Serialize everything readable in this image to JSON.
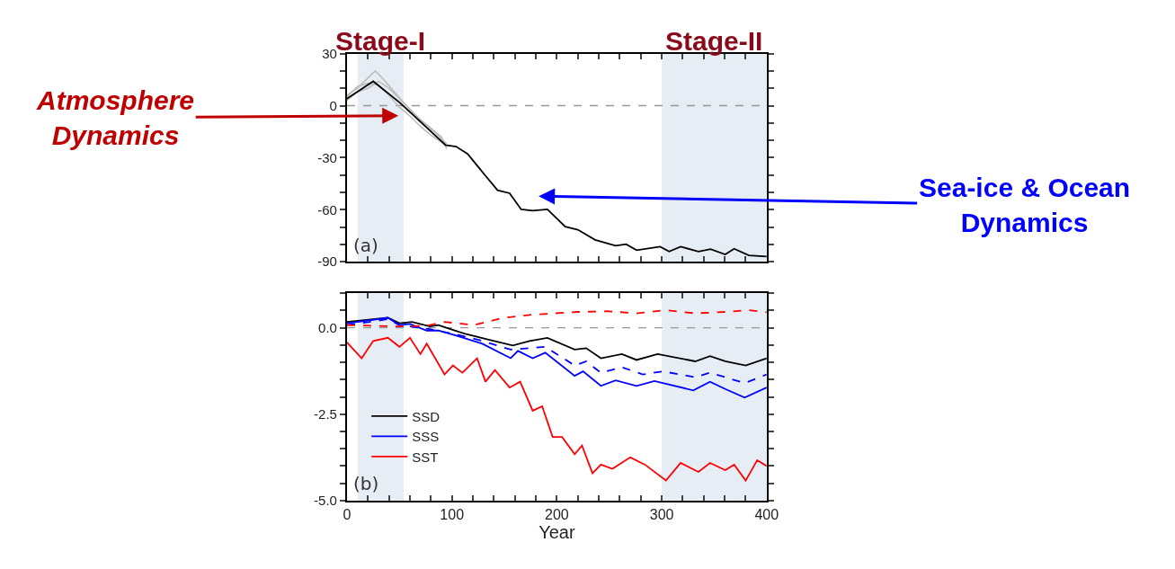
{
  "chart_data": [
    {
      "type": "line",
      "xlim": [
        0,
        400
      ],
      "ylim": [
        -90,
        30
      ],
      "xticks": [
        0,
        {
          "value": 20,
          "label": null
        },
        {
          "value": 40,
          "label": null
        },
        {
          "value": 60,
          "label": null
        },
        {
          "value": 80,
          "label": null
        },
        100,
        {
          "value": 120,
          "label": null
        },
        {
          "value": 140,
          "label": null
        },
        {
          "value": 160,
          "label": null
        },
        {
          "value": 180,
          "label": null
        },
        200,
        {
          "value": 220,
          "label": null
        },
        {
          "value": 240,
          "label": null
        },
        {
          "value": 260,
          "label": null
        },
        {
          "value": 280,
          "label": null
        },
        300,
        {
          "value": 320,
          "label": null
        },
        {
          "value": 340,
          "label": null
        },
        {
          "value": 360,
          "label": null
        },
        {
          "value": 380,
          "label": null
        },
        400
      ],
      "yticks": [
        -90,
        {
          "value": -80,
          "label": null
        },
        {
          "value": -70,
          "label": null
        },
        -60,
        {
          "value": -50,
          "label": null
        },
        {
          "value": -40,
          "label": null
        },
        -30,
        {
          "value": -20,
          "label": null
        },
        {
          "value": -10,
          "label": null
        },
        0,
        {
          "value": 10,
          "label": null
        },
        {
          "value": 20,
          "label": null
        },
        30
      ],
      "tick_labels": "y",
      "grid": false,
      "legend": false,
      "series": [
        {
          "color": "#bbbbbb",
          "x": [
            0,
            10,
            20,
            27,
            35,
            45,
            55,
            65,
            75,
            85,
            95
          ],
          "values": [
            6,
            10,
            16,
            20,
            15,
            8,
            1,
            -6,
            -11,
            -16,
            -22
          ]
        },
        {
          "color": "#bbbbbb",
          "x": [
            0,
            10,
            20,
            30,
            40,
            50,
            60,
            70,
            80,
            90,
            95
          ],
          "values": [
            5,
            11,
            13,
            12,
            6,
            -1,
            -6,
            -12,
            -17,
            -21,
            -24
          ]
        },
        {
          "color": "#bbbbbb",
          "x": [
            0,
            10,
            20,
            30,
            40,
            50,
            60,
            70,
            80,
            90,
            95
          ],
          "values": [
            3,
            8,
            10,
            14,
            10,
            4,
            -2,
            -8,
            -13,
            -18,
            -25
          ]
        },
        {
          "color": "#000000",
          "x": [
            0,
            25,
            50.5,
            94,
            104,
            115,
            124,
            132,
            143.5,
            155,
            166,
            177,
            191,
            208,
            220,
            236.5,
            256,
            266,
            276,
            298.5,
            307,
            318,
            335,
            346.5,
            360.5,
            369,
            383,
            400
          ],
          "values": [
            4,
            14,
            1.6,
            -22.8,
            -23.6,
            -27.8,
            -34.5,
            -40.4,
            -48.8,
            -50.5,
            -59.8,
            -60.6,
            -59.8,
            -69.8,
            -71.5,
            -77.4,
            -80.8,
            -79.9,
            -83.3,
            -81.3,
            -84.1,
            -81.3,
            -84.1,
            -82.7,
            -85.8,
            -82.5,
            -86.3,
            -87
          ]
        }
      ],
      "ref_lines": [
        {
          "axis": "y",
          "value": 0,
          "color": "#999999",
          "line_style": "dashed"
        }
      ],
      "bands": [
        {
          "axis": "x",
          "from": 10,
          "to": 54,
          "label": "Stage-I",
          "color": "#e6edf5"
        },
        {
          "axis": "x",
          "from": 300,
          "to": 400,
          "label": "Stage-II",
          "color": "#e6edf5"
        }
      ],
      "annotations": [
        "(a)",
        "Atmosphere Dynamics",
        "Sea-ice & Ocean Dynamics"
      ]
    },
    {
      "type": "line",
      "xlim": [
        0,
        400
      ],
      "ylim": [
        -5,
        1
      ],
      "xlabel": "Year",
      "xticks": [
        0,
        {
          "value": 20,
          "label": null
        },
        {
          "value": 40,
          "label": null
        },
        {
          "value": 60,
          "label": null
        },
        {
          "value": 80,
          "label": null
        },
        100,
        {
          "value": 120,
          "label": null
        },
        {
          "value": 140,
          "label": null
        },
        {
          "value": 160,
          "label": null
        },
        {
          "value": 180,
          "label": null
        },
        200,
        {
          "value": 220,
          "label": null
        },
        {
          "value": 240,
          "label": null
        },
        {
          "value": 260,
          "label": null
        },
        {
          "value": 280,
          "label": null
        },
        300,
        {
          "value": 320,
          "label": null
        },
        {
          "value": 340,
          "label": null
        },
        {
          "value": 360,
          "label": null
        },
        {
          "value": 380,
          "label": null
        },
        400
      ],
      "yticks": [
        {
          "value": -5,
          "label": "-5.0"
        },
        {
          "value": -4.5,
          "label": null
        },
        {
          "value": -4,
          "label": null
        },
        {
          "value": -3.5,
          "label": null
        },
        {
          "value": -3,
          "label": null
        },
        {
          "value": -2.5,
          "label": "-2.5"
        },
        {
          "value": -2,
          "label": null
        },
        {
          "value": -1.5,
          "label": null
        },
        {
          "value": -1,
          "label": null
        },
        {
          "value": -0.5,
          "label": null
        },
        {
          "value": 0,
          "label": "0.0"
        },
        {
          "value": 0.5,
          "label": null
        },
        {
          "value": 1,
          "label": null
        }
      ],
      "grid": false,
      "legend": "bottom left",
      "series": [
        {
          "name": "SSD",
          "color": "#000000",
          "line_style": "solid",
          "x": [
            0,
            39,
            50,
            62,
            79,
            87,
            112,
            135,
            158,
            174,
            191,
            217,
            228,
            242,
            262,
            276,
            296,
            332,
            346,
            360.5,
            380,
            400
          ],
          "values": [
            0.17,
            0.29,
            0.13,
            0.17,
            0.04,
            0.08,
            -0.17,
            -0.34,
            -0.51,
            -0.38,
            -0.29,
            -0.63,
            -0.59,
            -0.88,
            -0.76,
            -0.93,
            -0.76,
            -0.97,
            -0.82,
            -0.97,
            -1.09,
            -0.88
          ]
        },
        {
          "name": "SSS",
          "color": "#0000ff",
          "line_style": "solid",
          "x": [
            0,
            39,
            50,
            60,
            76,
            87,
            107,
            129,
            156,
            163,
            177,
            189,
            217,
            225,
            242,
            256,
            276,
            293,
            330,
            346,
            360.5,
            379,
            400
          ],
          "values": [
            0.13,
            0.29,
            0.08,
            0.11,
            -0.08,
            -0.08,
            -0.25,
            -0.46,
            -0.88,
            -0.67,
            -0.88,
            -0.72,
            -1.39,
            -1.26,
            -1.68,
            -1.52,
            -1.68,
            -1.54,
            -1.81,
            -1.56,
            -1.77,
            -2.02,
            -1.73
          ]
        },
        {
          "color": "#0000ff",
          "line_style": "dashed",
          "x": [
            0,
            39,
            50,
            79,
            107,
            129,
            156,
            189,
            217,
            228,
            242,
            262,
            282,
            301,
            332,
            346,
            360.5,
            379,
            400
          ],
          "values": [
            0.08,
            0.25,
            0.08,
            -0.04,
            -0.21,
            -0.38,
            -0.63,
            -0.55,
            -1.09,
            -0.97,
            -1.3,
            -1.14,
            -1.35,
            -1.26,
            -1.43,
            -1.3,
            -1.43,
            -1.6,
            -1.35
          ]
        },
        {
          "name": "SST",
          "color": "#ff0000",
          "line_style": "solid",
          "x": [
            0,
            14,
            25,
            39,
            50,
            60,
            70,
            76,
            93,
            101,
            110,
            124,
            132,
            141,
            155,
            165,
            177,
            186,
            196,
            205,
            217,
            224,
            234,
            242,
            253,
            270,
            284,
            304,
            318,
            335,
            346,
            360.5,
            369,
            380,
            391,
            400
          ],
          "values": [
            -0.42,
            -0.88,
            -0.38,
            -0.29,
            -0.55,
            -0.29,
            -0.76,
            -0.46,
            -1.35,
            -1.09,
            -1.3,
            -0.88,
            -1.56,
            -1.22,
            -1.73,
            -1.56,
            -2.4,
            -2.27,
            -3.16,
            -3.16,
            -3.66,
            -3.41,
            -4.21,
            -3.96,
            -4.08,
            -3.75,
            -3.96,
            -4.42,
            -3.91,
            -4.17,
            -3.91,
            -4.12,
            -3.96,
            -4.42,
            -3.83,
            -4.0
          ]
        },
        {
          "color": "#ff0000",
          "line_style": "dashed",
          "x": [
            0,
            50,
            76,
            93,
            121,
            149,
            177,
            220,
            248,
            276,
            304,
            332,
            360.5,
            383,
            400
          ],
          "values": [
            0.08,
            0.04,
            0.06,
            0.17,
            0.08,
            0.29,
            0.38,
            0.46,
            0.48,
            0.42,
            0.51,
            0.42,
            0.46,
            0.51,
            0.45
          ]
        }
      ],
      "ref_lines": [
        {
          "axis": "y",
          "value": 0,
          "color": "#999999",
          "line_style": "dashed"
        }
      ],
      "bands": [
        {
          "axis": "x",
          "from": 10,
          "to": 54,
          "color": "#e6edf5"
        },
        {
          "axis": "x",
          "from": 300,
          "to": 400,
          "color": "#e6edf5"
        }
      ],
      "annotations": [
        "(b)"
      ]
    }
  ]
}
